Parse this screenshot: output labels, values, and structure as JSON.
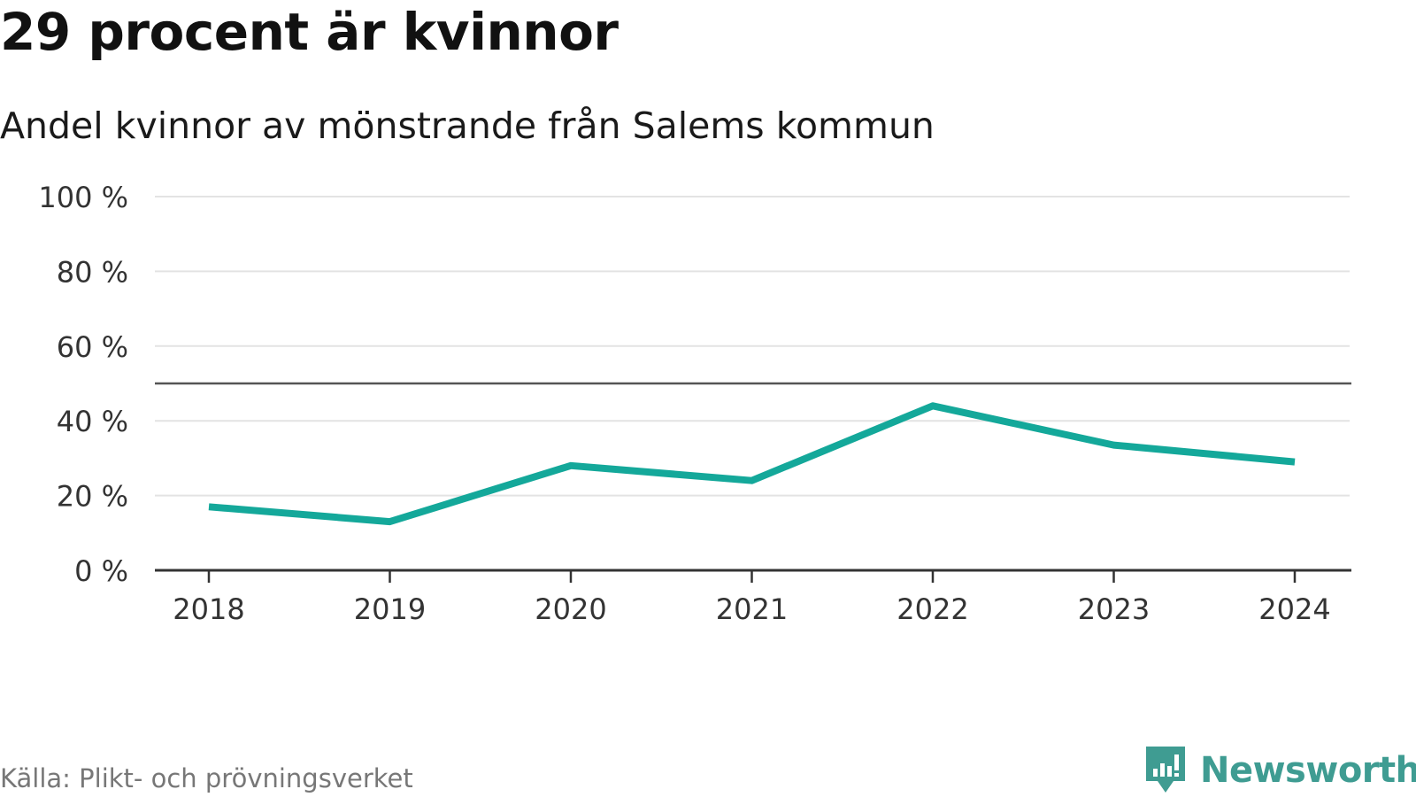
{
  "title": "29 procent är kvinnor",
  "subtitle": "Andel kvinnor av mönstrande från Salems kommun",
  "source": "Källa: Plikt- och prövningsverket",
  "brand": {
    "name": "Newsworthy",
    "color": "#3f9c92",
    "icon": "newsworthy-logo-icon"
  },
  "colors": {
    "line": "#14a89a",
    "grid": "#e3e3e3",
    "reference": "#555555",
    "axis": "#333333",
    "tick_text": "#333333"
  },
  "chart_data": {
    "type": "line",
    "title": "29 procent är kvinnor",
    "subtitle": "Andel kvinnor av mönstrande från Salems kommun",
    "xlabel": "",
    "ylabel": "",
    "x": [
      "2018",
      "2019",
      "2020",
      "2021",
      "2022",
      "2023",
      "2024"
    ],
    "series": [
      {
        "name": "Andel kvinnor",
        "values": [
          17,
          13,
          28,
          24,
          44,
          33.5,
          29
        ]
      }
    ],
    "ylim": [
      0,
      100
    ],
    "yticks": [
      0,
      20,
      40,
      60,
      80,
      100
    ],
    "ytick_labels": [
      "0 %",
      "20 %",
      "40 %",
      "60 %",
      "80 %",
      "100 %"
    ],
    "reference_line": 50,
    "grid": true,
    "legend": "none"
  }
}
